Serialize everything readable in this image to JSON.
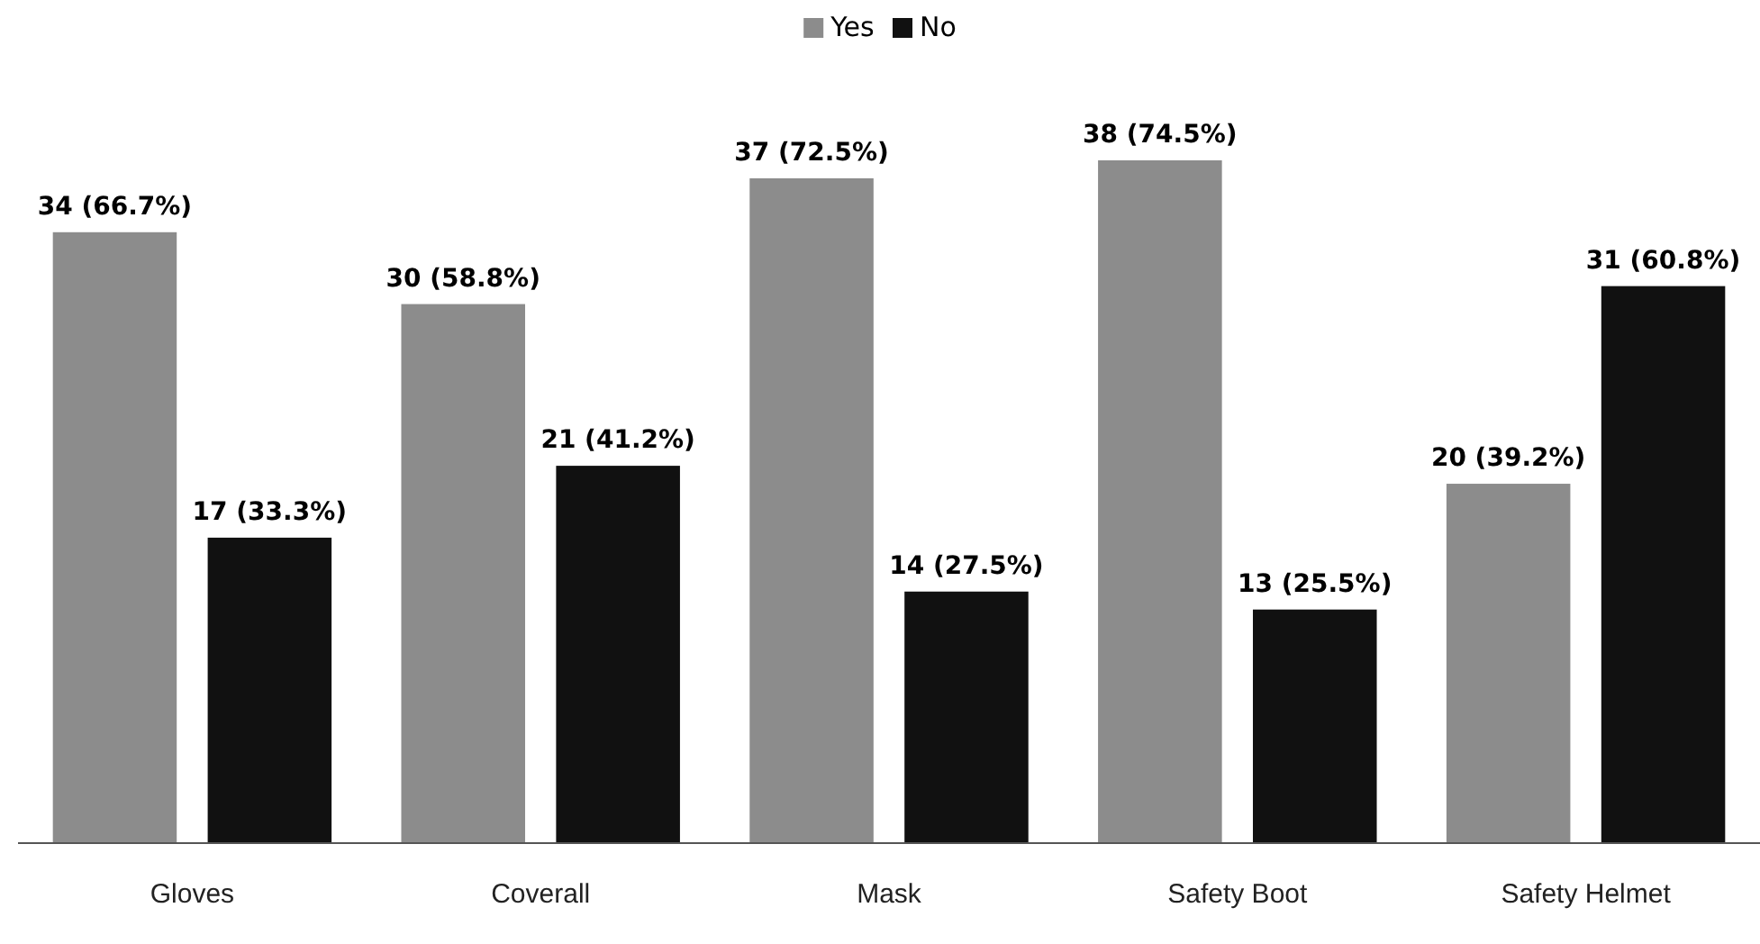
{
  "chart_data": {
    "type": "bar",
    "categories": [
      "Gloves",
      "Coverall",
      "Mask",
      "Safety Boot",
      "Safety Helmet"
    ],
    "series": [
      {
        "name": "Yes",
        "color": "#8c8c8c",
        "values": [
          34,
          30,
          37,
          38,
          20
        ],
        "value_labels": [
          "34 (66.7%)",
          "30 (58.8%)",
          "37 (72.5%)",
          "38 (74.5%)",
          "20 (39.2%)"
        ]
      },
      {
        "name": "No",
        "color": "#111111",
        "values": [
          17,
          21,
          14,
          13,
          31
        ],
        "value_labels": [
          "17 (33.3%)",
          "21 (41.2%)",
          "14 (27.5%)",
          "13 (25.5%)",
          "31 (60.8%)"
        ]
      }
    ],
    "legend": "top",
    "grid": false
  }
}
